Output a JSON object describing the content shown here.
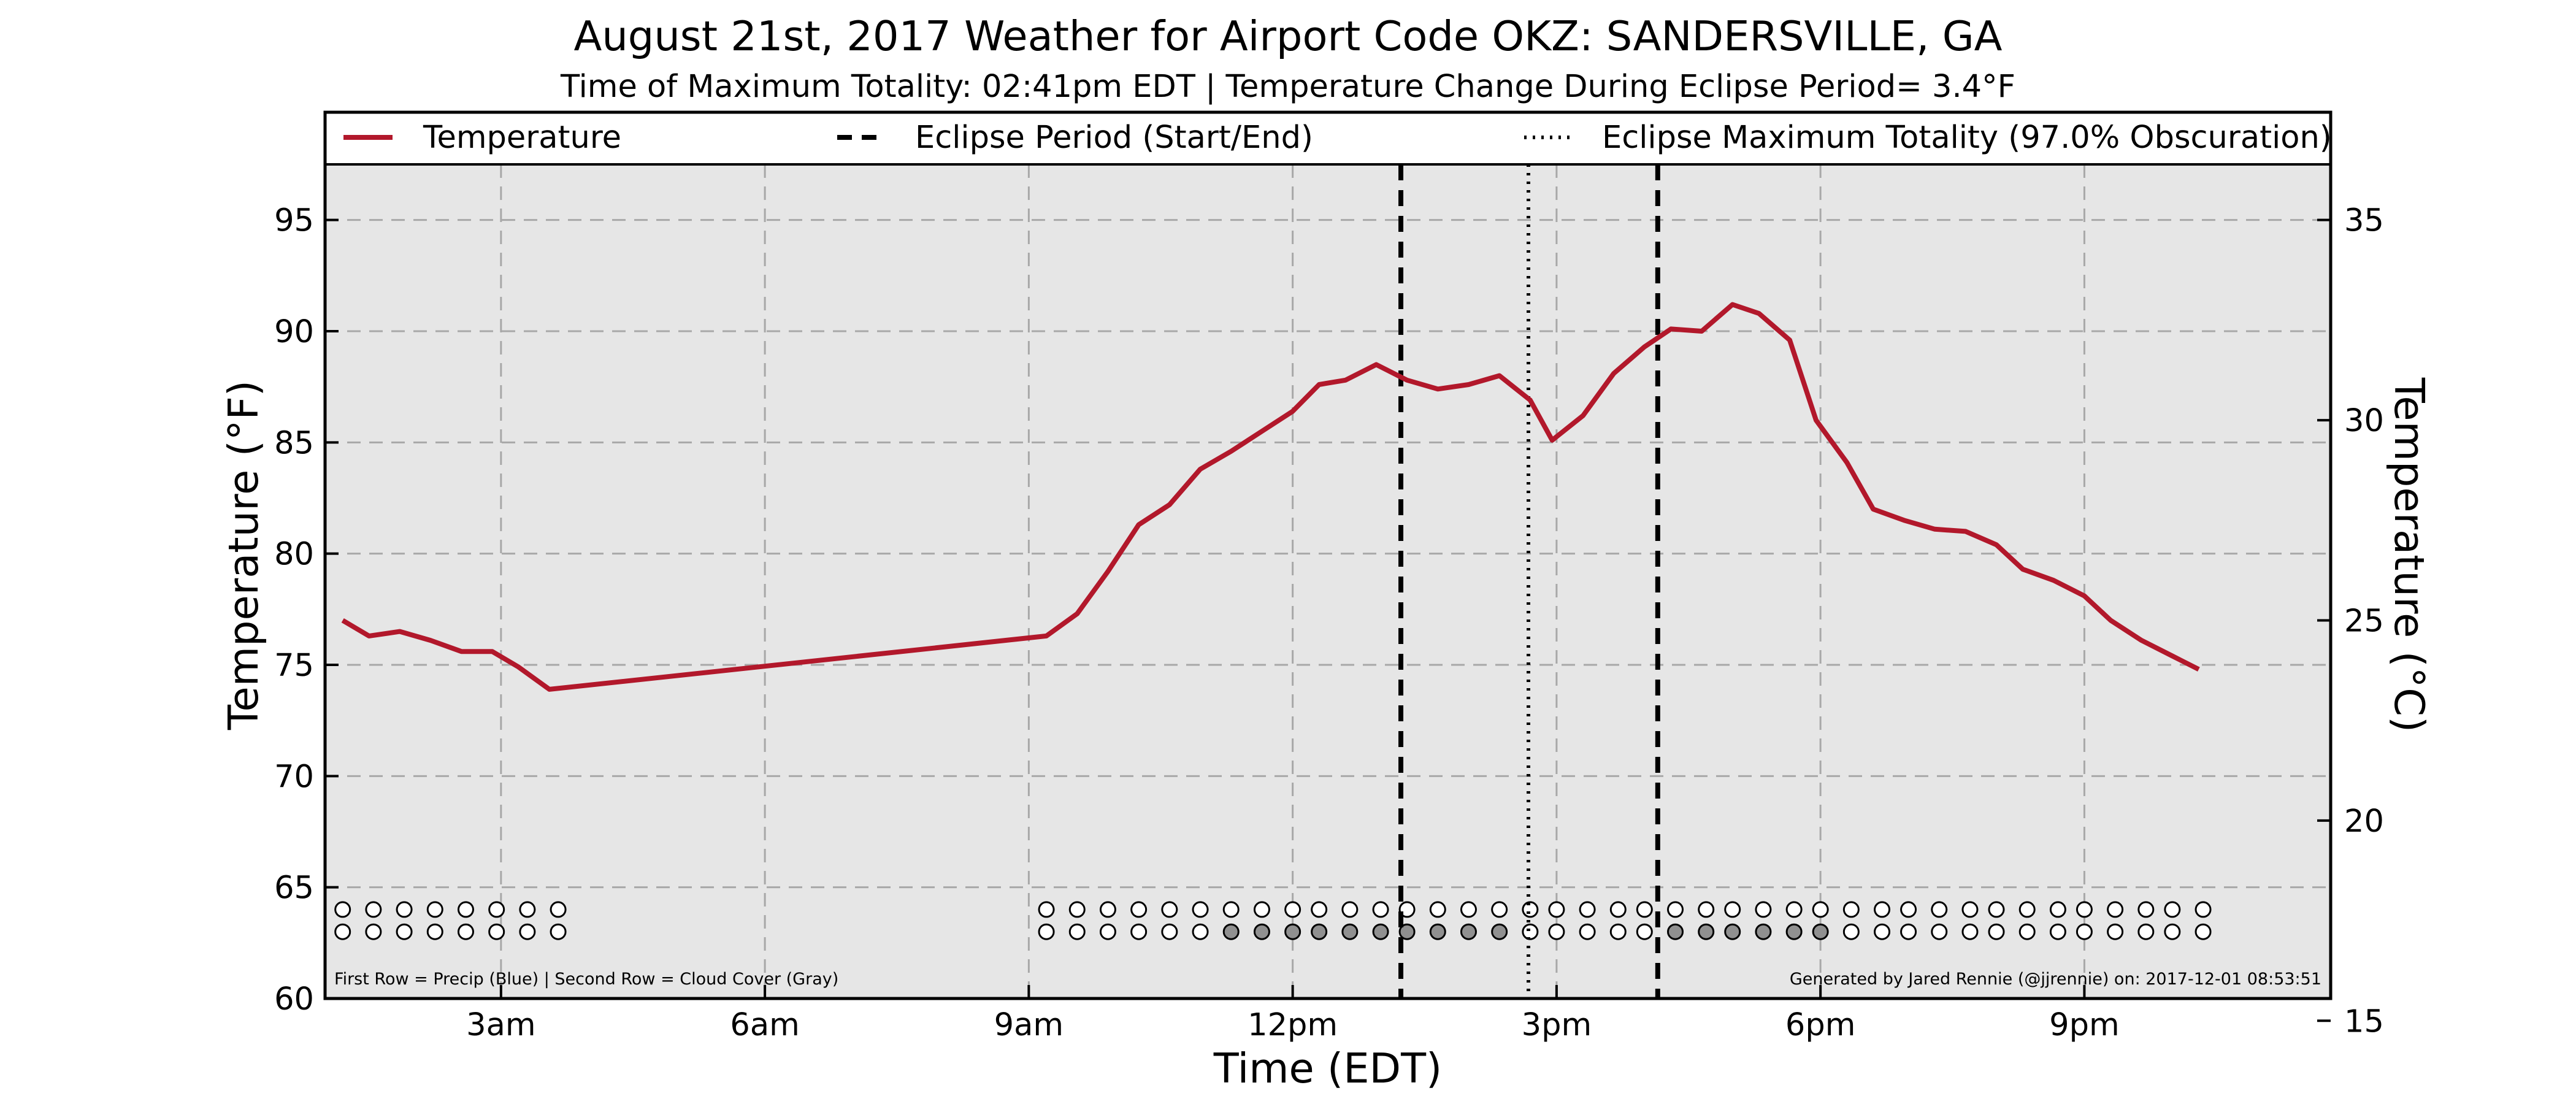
{
  "chart_data": {
    "type": "line",
    "title": "August 21st, 2017 Weather for Airport Code OKZ: SANDERSVILLE, GA",
    "subtitle": "Time of Maximum Totality: 02:41pm EDT | Temperature Change During Eclipse Period= 3.4°F",
    "xlabel": "Time (EDT)",
    "ylabel": "Temperature (°F)",
    "ylabel_right": "Temperature (°C)",
    "xlim": [
      1.0,
      23.8
    ],
    "ylim": [
      60,
      97.5
    ],
    "xticks": [
      {
        "value": 3,
        "label": "3am"
      },
      {
        "value": 6,
        "label": "6am"
      },
      {
        "value": 9,
        "label": "9am"
      },
      {
        "value": 12,
        "label": "12pm"
      },
      {
        "value": 15,
        "label": "3pm"
      },
      {
        "value": 18,
        "label": "6pm"
      },
      {
        "value": 21,
        "label": "9pm"
      }
    ],
    "yticks": [
      60,
      65,
      70,
      75,
      80,
      85,
      90,
      95
    ],
    "yticks_right": [
      15,
      20,
      25,
      30,
      35
    ],
    "grid": true,
    "legend_placement": "top",
    "legend": [
      {
        "label": "Temperature",
        "style": "solid",
        "color": "#b2182b"
      },
      {
        "label": "Eclipse Period (Start/End)",
        "style": "dashed",
        "color": "#000000"
      },
      {
        "label": "Eclipse Maximum Totality (97.0% Obscuration)",
        "style": "dotted",
        "color": "#000000"
      }
    ],
    "series": [
      {
        "name": "Temperature",
        "color": "#b2182b",
        "points": [
          [
            1.2,
            77.0
          ],
          [
            1.5,
            76.3
          ],
          [
            1.85,
            76.5
          ],
          [
            2.2,
            76.1
          ],
          [
            2.55,
            75.6
          ],
          [
            2.9,
            75.6
          ],
          [
            3.2,
            74.9
          ],
          [
            3.55,
            73.9
          ],
          [
            9.2,
            76.3
          ],
          [
            9.55,
            77.3
          ],
          [
            9.9,
            79.2
          ],
          [
            10.25,
            81.3
          ],
          [
            10.6,
            82.2
          ],
          [
            10.95,
            83.8
          ],
          [
            11.3,
            84.6
          ],
          [
            11.65,
            85.5
          ],
          [
            12.0,
            86.4
          ],
          [
            12.3,
            87.6
          ],
          [
            12.6,
            87.8
          ],
          [
            12.95,
            88.5
          ],
          [
            13.3,
            87.8
          ],
          [
            13.65,
            87.4
          ],
          [
            14.0,
            87.6
          ],
          [
            14.35,
            88.0
          ],
          [
            14.7,
            86.9
          ],
          [
            14.95,
            85.1
          ],
          [
            15.3,
            86.2
          ],
          [
            15.65,
            88.1
          ],
          [
            16.0,
            89.3
          ],
          [
            16.3,
            90.1
          ],
          [
            16.65,
            90.0
          ],
          [
            17.0,
            91.2
          ],
          [
            17.3,
            90.8
          ],
          [
            17.65,
            89.6
          ],
          [
            17.95,
            86.0
          ],
          [
            18.3,
            84.1
          ],
          [
            18.6,
            82.0
          ],
          [
            18.95,
            81.5
          ],
          [
            19.3,
            81.1
          ],
          [
            19.65,
            81.0
          ],
          [
            20.0,
            80.4
          ],
          [
            20.3,
            79.3
          ],
          [
            20.65,
            78.8
          ],
          [
            21.0,
            78.1
          ],
          [
            21.3,
            77.0
          ],
          [
            21.65,
            76.1
          ],
          [
            22.0,
            75.4
          ],
          [
            22.3,
            74.8
          ]
        ]
      }
    ],
    "eclipse_start": 13.23,
    "eclipse_end": 16.15,
    "eclipse_max": 14.68,
    "marker_rows": {
      "row_values": [
        64,
        63
      ],
      "times": [
        1.2,
        1.55,
        1.9,
        2.25,
        2.6,
        2.95,
        3.3,
        3.65,
        9.2,
        9.55,
        9.9,
        10.25,
        10.6,
        10.95,
        11.3,
        11.65,
        12.0,
        12.3,
        12.65,
        13.0,
        13.3,
        13.65,
        14.0,
        14.35,
        14.7,
        15.0,
        15.35,
        15.7,
        16.0,
        16.35,
        16.7,
        17.0,
        17.35,
        17.7,
        18.0,
        18.35,
        18.7,
        19.0,
        19.35,
        19.7,
        20.0,
        20.35,
        20.7,
        21.0,
        21.35,
        21.7,
        22.0,
        22.35
      ],
      "precip_color": "#ffffff",
      "cloud_gray_times": [
        11.3,
        11.65,
        12.0,
        12.3,
        12.65,
        13.0,
        13.3,
        13.65,
        14.0,
        14.35,
        16.35,
        16.7,
        17.0,
        17.35,
        17.7,
        18.0
      ],
      "cloud_gray_color": "#909090"
    },
    "footnote_left": "First Row = Precip (Blue) | Second Row = Cloud Cover (Gray)",
    "footnote_right": "Generated by Jared Rennie (@jjrennie) on: 2017-12-01 08:53:51"
  }
}
